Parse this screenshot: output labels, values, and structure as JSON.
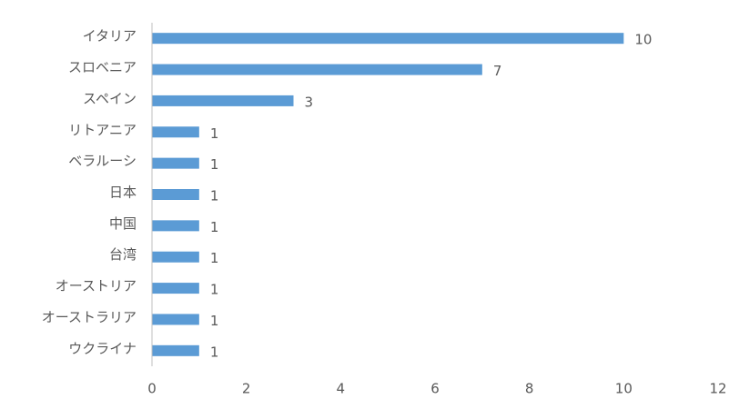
{
  "chart_data": {
    "type": "bar",
    "orientation": "horizontal",
    "categories": [
      "イタリア",
      "スロベニア",
      "スペイン",
      "リトアニア",
      "ベラルーシ",
      "日本",
      "中国",
      "台湾",
      "オーストリア",
      "オーストラリア",
      "ウクライナ"
    ],
    "values": [
      10,
      7,
      3,
      1,
      1,
      1,
      1,
      1,
      1,
      1,
      1
    ],
    "color": "#5b9bd5",
    "xlim": [
      0,
      12
    ],
    "xticks": [
      0,
      2,
      4,
      6,
      8,
      10,
      12
    ],
    "grid": false,
    "data_labels": true
  }
}
